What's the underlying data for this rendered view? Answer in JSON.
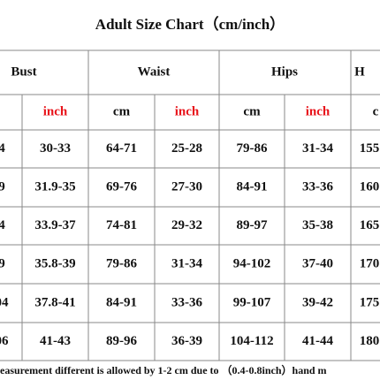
{
  "header": {
    "title": "Adult Size Chart（cm/inch）"
  },
  "table": {
    "groups": [
      "Bust",
      "Waist",
      "Hips",
      "H"
    ],
    "subheaders": [
      "inch",
      "cm",
      "inch",
      "cm",
      "inch",
      "c"
    ],
    "rows": [
      [
        "4",
        "30-33",
        "64-71",
        "25-28",
        "79-86",
        "31-34",
        "155"
      ],
      [
        "9",
        "31.9-35",
        "69-76",
        "27-30",
        "84-91",
        "33-36",
        "160"
      ],
      [
        "4",
        "33.9-37",
        "74-81",
        "29-32",
        "89-97",
        "35-38",
        "165"
      ],
      [
        "9",
        "35.8-39",
        "79-86",
        "31-34",
        "94-102",
        "37-40",
        "170"
      ],
      [
        "04",
        "37.8-41",
        "84-91",
        "33-36",
        "99-107",
        "39-42",
        "175"
      ],
      [
        "06",
        "41-43",
        "89-96",
        "36-39",
        "104-112",
        "41-44",
        "180"
      ]
    ]
  },
  "footnote": "easurement different is allowed by 1-2 cm due to （0.4-0.8inch）hand m"
}
